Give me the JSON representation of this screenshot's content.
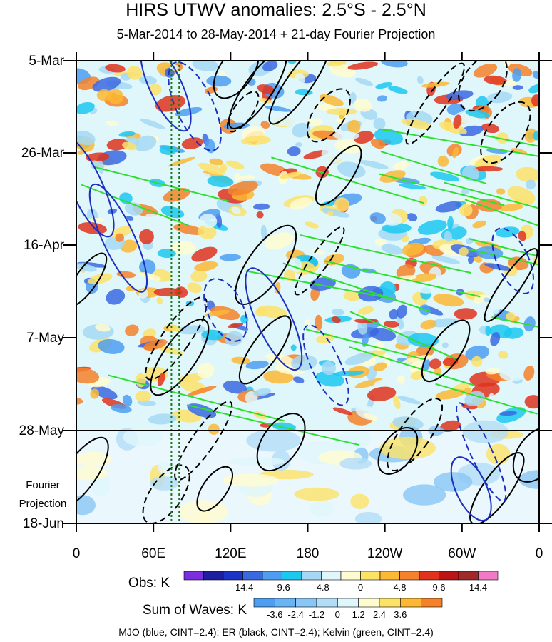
{
  "chart_data": {
    "type": "heatmap",
    "title": "HIRS UTWV anomalies: 2.5°S - 2.5°N",
    "subtitle": "5-Mar-2014 to 28-May-2014 + 21-day Fourier Projection",
    "x_ticks": [
      "0",
      "60E",
      "120E",
      "180",
      "120W",
      "60W",
      "0"
    ],
    "x_tick_values": [
      0,
      60,
      120,
      180,
      240,
      300,
      360
    ],
    "y_ticks": [
      "5-Mar",
      "26-Mar",
      "16-Apr",
      "7-May",
      "28-May",
      "18-Jun"
    ],
    "projection_label_line1": "Fourier",
    "projection_label_line2": "Projection",
    "obs_end_date": "28-May",
    "reference_lines_lon": [
      74,
      80
    ],
    "obs_colorbar": {
      "label": "Obs: K",
      "tick_labels": [
        "-14.4",
        "-9.6",
        "-4.8",
        "0",
        "4.8",
        "9.6",
        "14.4"
      ],
      "colors": [
        "#7a2ee0",
        "#1e1ea0",
        "#1c33c8",
        "#3a68e0",
        "#4d9ef0",
        "#1cc8f0",
        "#a6d8f5",
        "#dff6fb",
        "#fffbd0",
        "#fde268",
        "#fdb834",
        "#f5822a",
        "#e0321c",
        "#bb1414",
        "#a02a2a",
        "#f07ac8"
      ]
    },
    "waves_colorbar": {
      "label": "Sum of Waves: K",
      "tick_labels": [
        "-3.6",
        "-2.4",
        "-1.2",
        "0",
        "1.2",
        "2.4",
        "3.6"
      ],
      "colors": [
        "#4d9ef0",
        "#69b4f3",
        "#8ac6f5",
        "#b3ddf7",
        "#dff6fb",
        "#fffbd0",
        "#fde268",
        "#fdb834",
        "#f5822a"
      ]
    },
    "caption": "MJO (blue, CINT=2.4); ER (black, CINT=2.4); Kelvin (green, CINT=2.4)",
    "wave_colors": {
      "MJO": "#1c2fc0",
      "ER": "#000000",
      "Kelvin": "#2ee02e"
    }
  }
}
